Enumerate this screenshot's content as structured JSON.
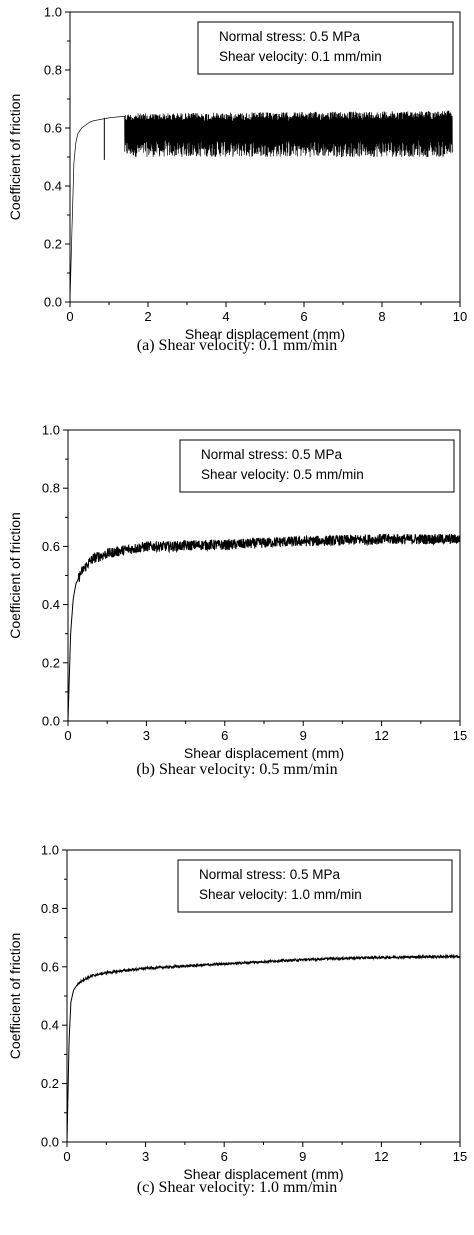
{
  "chart_data": [
    {
      "id": "a",
      "type": "line",
      "xlabel": "Shear displacement (mm)",
      "ylabel": "Coefficient of friction",
      "xlim": [
        0,
        10
      ],
      "ylim": [
        0,
        1.0
      ],
      "xticks": [
        0,
        2,
        4,
        6,
        8,
        10
      ],
      "xtick_labels": [
        "0",
        "2",
        "4",
        "6",
        "8",
        "10"
      ],
      "yticks": [
        0,
        0.2,
        0.4,
        0.6,
        0.8,
        1.0
      ],
      "ytick_labels": [
        "0.0",
        "0.2",
        "0.4",
        "0.6",
        "0.8",
        "1.0"
      ],
      "legend": [
        "Normal stress: 0.5 MPa",
        "Shear velocity: 0.1 mm/min"
      ],
      "legend_position": "top-right",
      "caption": "(a)  Shear  velocity:  0.1  mm/min",
      "series": [
        {
          "x": [
            0,
            0.05,
            0.1,
            0.15,
            0.2,
            0.3,
            0.4,
            0.5,
            0.6,
            0.8,
            1.0,
            1.2,
            1.4,
            1.6,
            2,
            3,
            4,
            5,
            6,
            7,
            8,
            9,
            9.8
          ],
          "y": [
            0,
            0.25,
            0.48,
            0.55,
            0.58,
            0.6,
            0.61,
            0.62,
            0.625,
            0.63,
            0.635,
            0.638,
            0.64,
            0.6,
            0.58,
            0.58,
            0.575,
            0.58,
            0.58,
            0.575,
            0.575,
            0.575,
            0.575
          ],
          "band": {
            "x": [
              1.4,
              9.8
            ],
            "upper": [
              0.65,
              0.66
            ],
            "lower": [
              0.5,
              0.5
            ]
          }
        }
      ]
    },
    {
      "id": "b",
      "type": "line",
      "xlabel": "Shear displacement (mm)",
      "ylabel": "Coefficient of friction",
      "xlim": [
        0,
        15
      ],
      "ylim": [
        0,
        1.0
      ],
      "xticks": [
        0,
        3,
        6,
        9,
        12,
        15
      ],
      "xtick_labels": [
        "0",
        "3",
        "6",
        "9",
        "12",
        "15"
      ],
      "yticks": [
        0,
        0.2,
        0.4,
        0.6,
        0.8,
        1.0
      ],
      "ytick_labels": [
        "0.0",
        "0.2",
        "0.4",
        "0.6",
        "0.8",
        "1.0"
      ],
      "legend": [
        "Normal stress: 0.5 MPa",
        "Shear velocity: 0.5 mm/min"
      ],
      "legend_position": "top-right",
      "caption": "(b)  Shear  velocity:  0.5  mm/min",
      "series": [
        {
          "x": [
            0,
            0.1,
            0.2,
            0.3,
            0.5,
            0.8,
            1.0,
            1.5,
            2.0,
            3.0,
            4.0,
            5.0,
            6.0,
            8.0,
            10.0,
            12.0,
            14.0,
            15.0
          ],
          "y": [
            0,
            0.3,
            0.42,
            0.47,
            0.51,
            0.545,
            0.56,
            0.575,
            0.585,
            0.6,
            0.6,
            0.605,
            0.605,
            0.615,
            0.62,
            0.625,
            0.625,
            0.625
          ],
          "noise": 0.018
        }
      ]
    },
    {
      "id": "c",
      "type": "line",
      "xlabel": "Shear displacement (mm)",
      "ylabel": "Coefficient of friction",
      "xlim": [
        0,
        15
      ],
      "ylim": [
        0,
        1.0
      ],
      "xticks": [
        0,
        3,
        6,
        9,
        12,
        15
      ],
      "xtick_labels": [
        "0",
        "3",
        "6",
        "9",
        "12",
        "15"
      ],
      "yticks": [
        0,
        0.2,
        0.4,
        0.6,
        0.8,
        1.0
      ],
      "ytick_labels": [
        "0.0",
        "0.2",
        "0.4",
        "0.6",
        "0.8",
        "1.0"
      ],
      "legend": [
        "Normal stress: 0.5 MPa",
        "Shear velocity: 1.0 mm/min"
      ],
      "legend_position": "top-right",
      "caption": "(c)  Shear  velocity:  1.0  mm/min",
      "series": [
        {
          "x": [
            0,
            0.08,
            0.15,
            0.25,
            0.4,
            0.6,
            1.0,
            1.5,
            2.0,
            3.0,
            4.0,
            6.0,
            8.0,
            10.0,
            12.0,
            14.0,
            15.0
          ],
          "y": [
            0,
            0.35,
            0.48,
            0.52,
            0.54,
            0.555,
            0.57,
            0.58,
            0.585,
            0.595,
            0.6,
            0.61,
            0.62,
            0.628,
            0.632,
            0.635,
            0.635
          ],
          "noise": 0.004
        }
      ]
    }
  ]
}
